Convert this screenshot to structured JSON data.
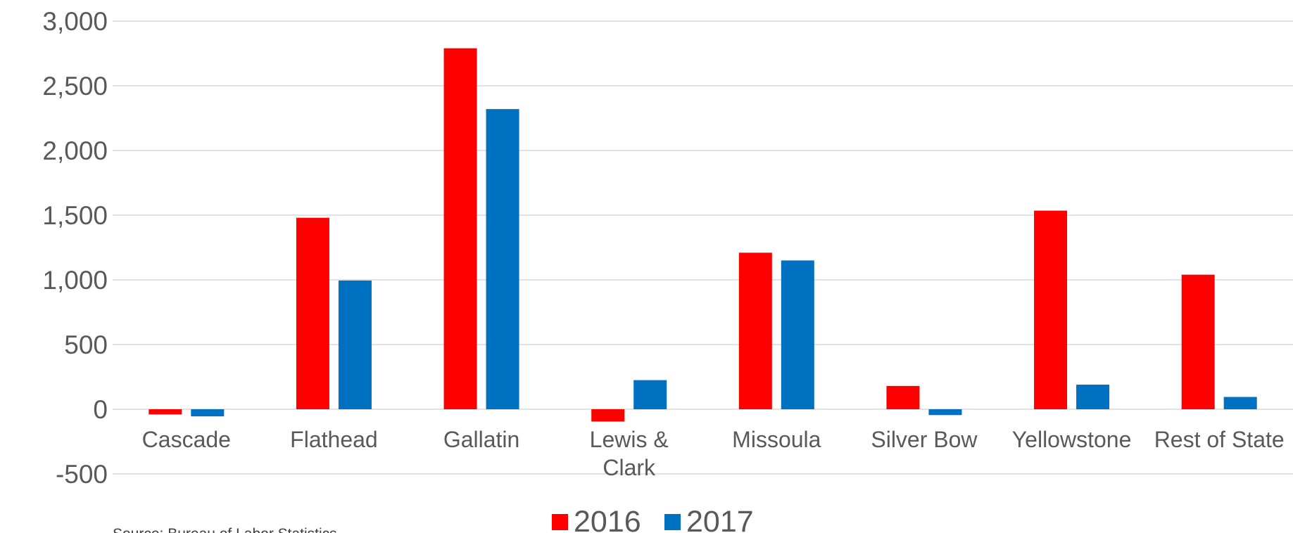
{
  "chart_data": {
    "type": "bar",
    "title": "",
    "xlabel": "",
    "ylabel": "",
    "categories": [
      [
        "Cascade"
      ],
      [
        "Flathead"
      ],
      [
        "Gallatin"
      ],
      [
        "Lewis &",
        "Clark"
      ],
      [
        "Missoula"
      ],
      [
        "Silver Bow"
      ],
      [
        "Yellowstone"
      ],
      [
        "Rest of State"
      ]
    ],
    "series": [
      {
        "name": "2016",
        "color": "#ff0000",
        "values": [
          -40,
          1480,
          2790,
          -95,
          1210,
          180,
          1535,
          1040
        ]
      },
      {
        "name": "2017",
        "color": "#0070c0",
        "values": [
          -55,
          995,
          2320,
          225,
          1150,
          -45,
          190,
          95
        ]
      }
    ],
    "ylim": [
      -500,
      3000
    ],
    "yticks": [
      -500,
      0,
      500,
      1000,
      1500,
      2000,
      2500,
      3000
    ],
    "ytick_labels": [
      "-500",
      "0",
      "500",
      "1,000",
      "1,500",
      "2,000",
      "2,500",
      "3,000"
    ],
    "grid": true,
    "legend_position": "bottom"
  },
  "source_note": "Source: Bureau of Labor Statistics"
}
